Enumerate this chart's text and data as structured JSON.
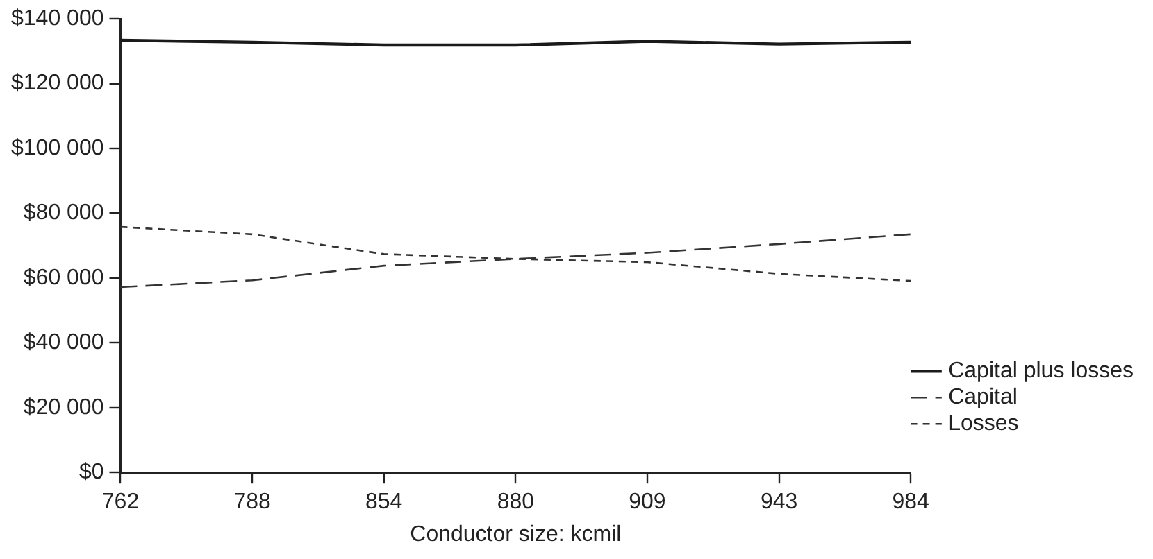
{
  "chart_data": {
    "type": "line",
    "xlabel": "Conductor size: kcmil",
    "categories": [
      "762",
      "788",
      "854",
      "880",
      "909",
      "943",
      "984"
    ],
    "series": [
      {
        "name": "Capital plus losses",
        "color": "#1a1a1a",
        "line_style": "solid",
        "values": [
          133400,
          132800,
          131900,
          131900,
          133100,
          132200,
          132800
        ]
      },
      {
        "name": "Capital",
        "color": "#333333",
        "line_style": "dashed",
        "values": [
          57200,
          59300,
          63800,
          65900,
          67800,
          70500,
          73500
        ]
      },
      {
        "name": "Losses",
        "color": "#333333",
        "line_style": "dotted",
        "values": [
          75800,
          73500,
          67400,
          65900,
          64900,
          61300,
          59100
        ]
      }
    ],
    "ylim": [
      0,
      140000
    ],
    "yticks": [
      {
        "value": 0,
        "label": "$0"
      },
      {
        "value": 20000,
        "label": "$20 000"
      },
      {
        "value": 40000,
        "label": "$40 000"
      },
      {
        "value": 60000,
        "label": "$60 000"
      },
      {
        "value": 80000,
        "label": "$80 000"
      },
      {
        "value": 100000,
        "label": "$100 000"
      },
      {
        "value": 120000,
        "label": "$120 000"
      },
      {
        "value": 140000,
        "label": "$140 000"
      }
    ],
    "grid": false,
    "legend": "bottom right",
    "marker": "none"
  }
}
